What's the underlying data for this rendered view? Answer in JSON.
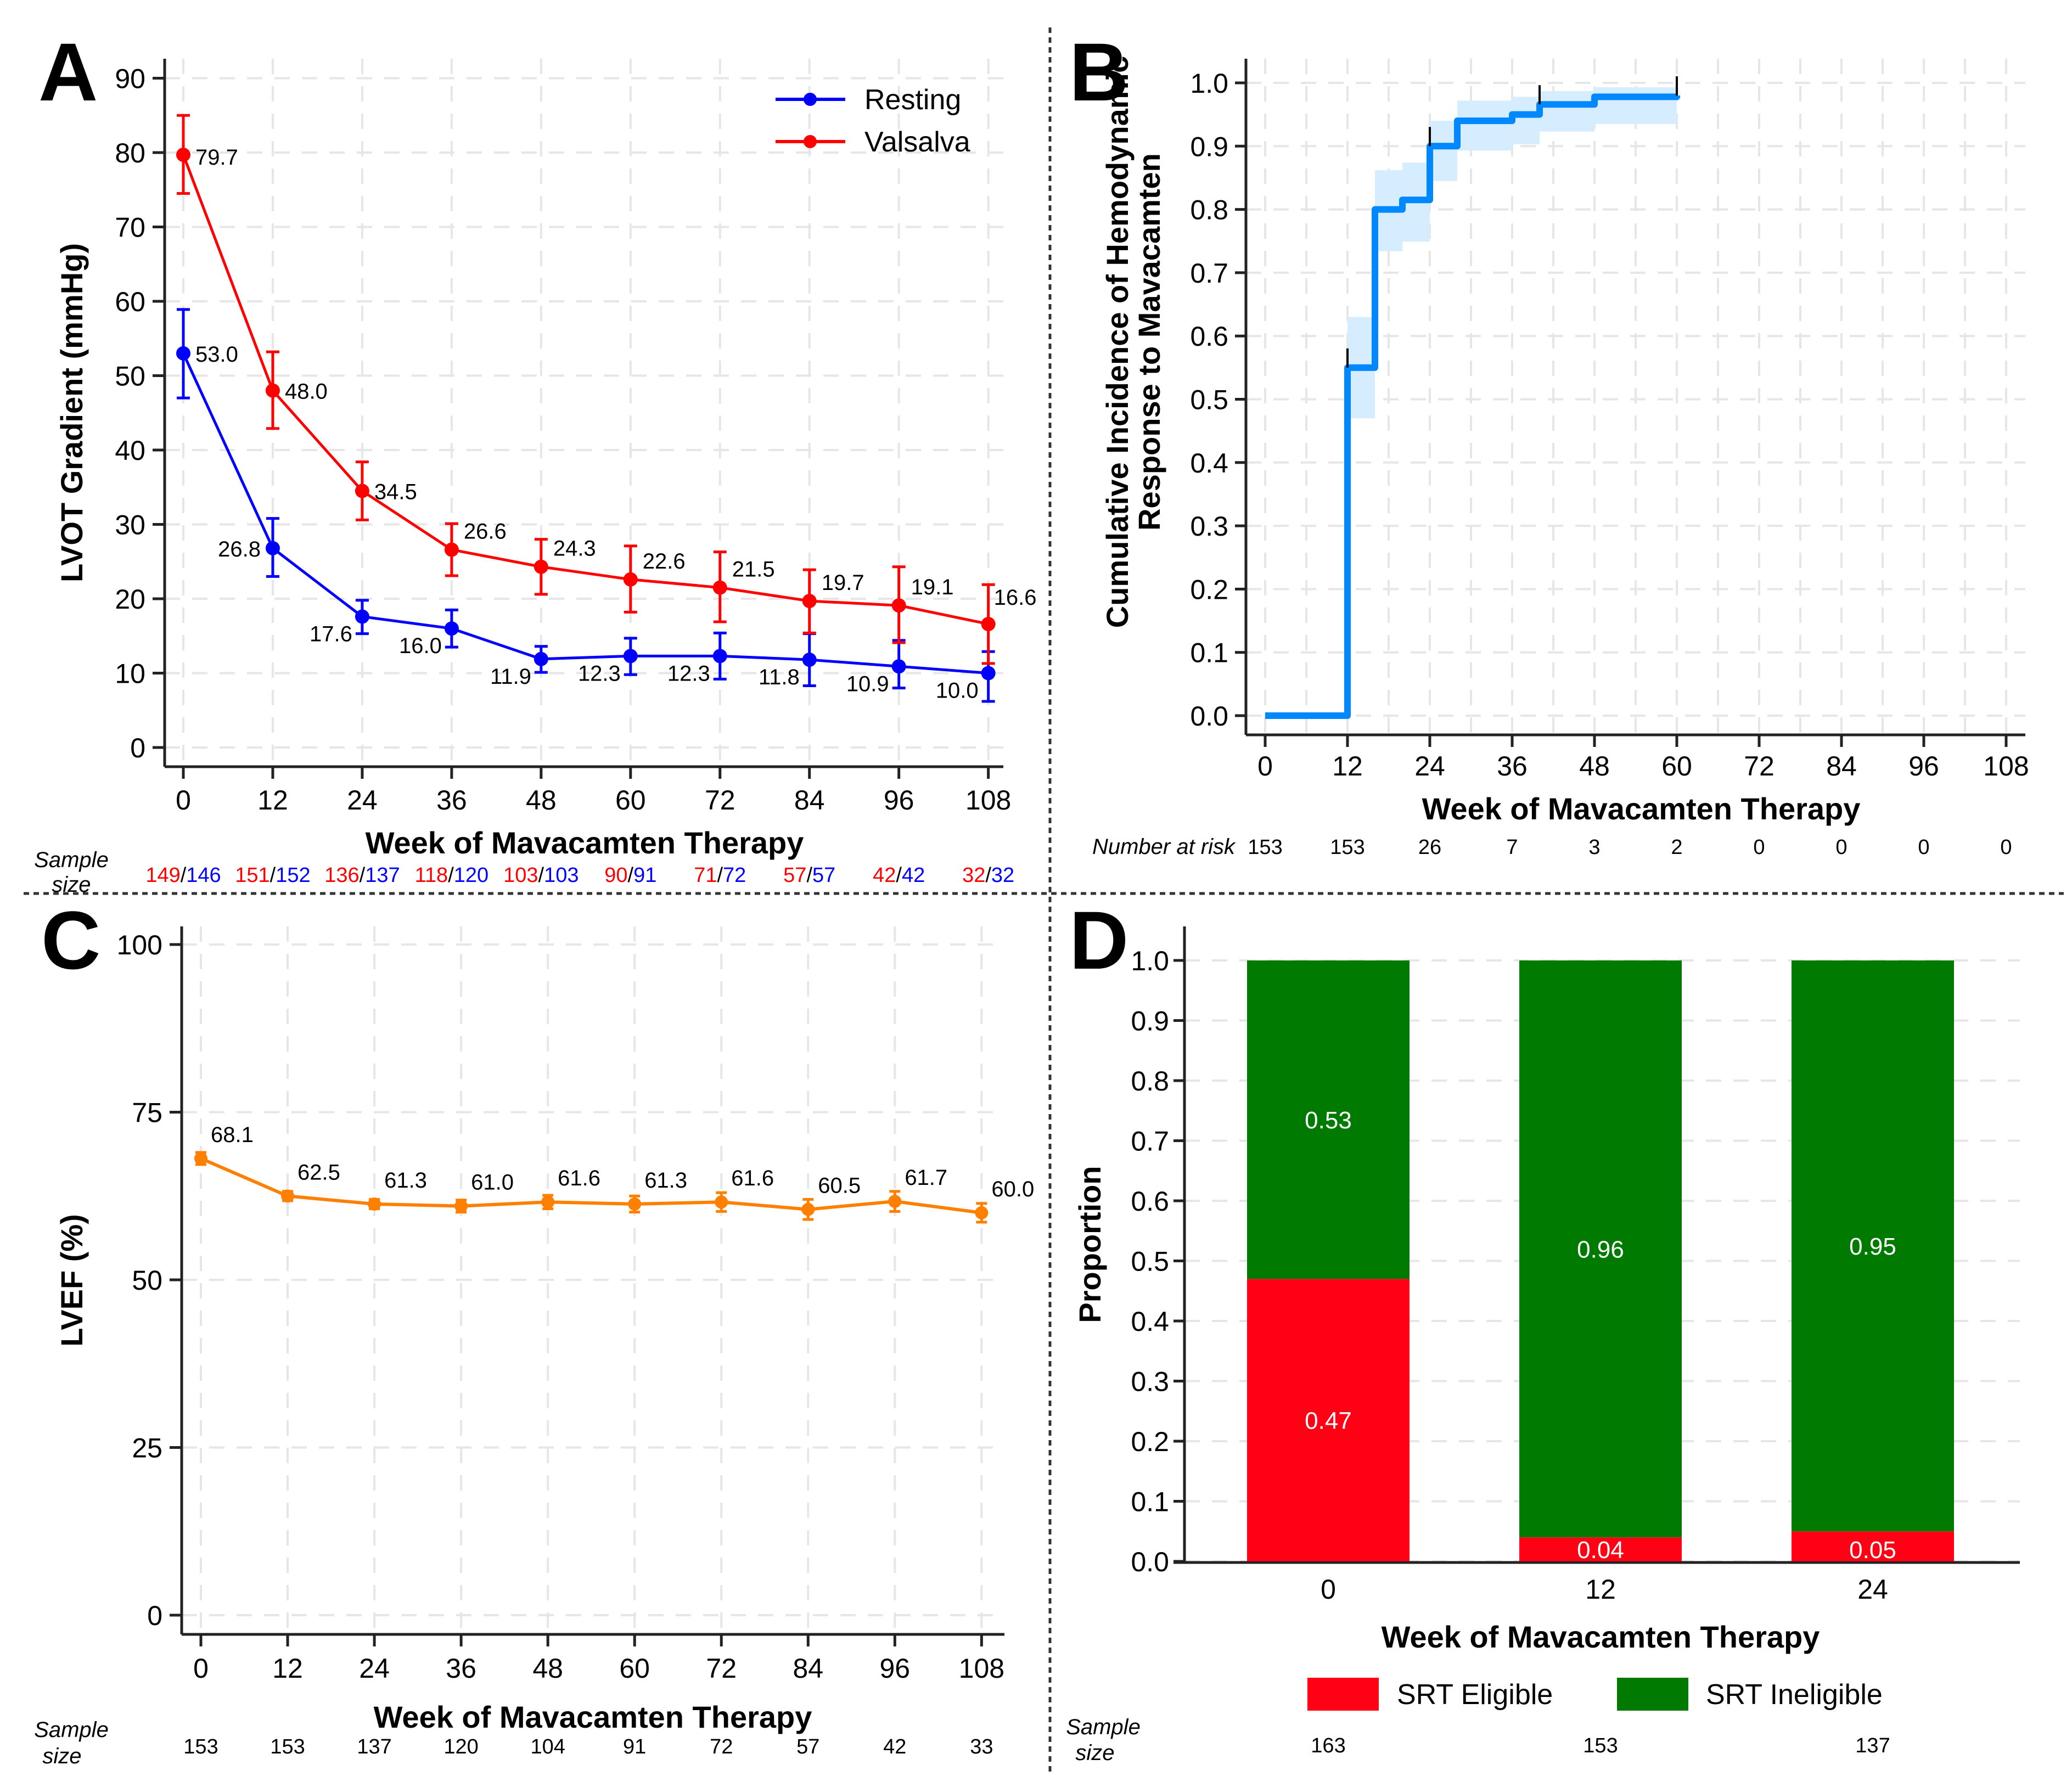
{
  "figure": {
    "panels": [
      "A",
      "B",
      "C",
      "D"
    ],
    "sample_size_label": [
      "Sample",
      "size"
    ],
    "number_at_risk_label": "Number at risk"
  },
  "colors": {
    "resting": "#0000FF",
    "valsalva": "#FF0000",
    "lvef": "#FF8000",
    "cumulative": "#0088FF",
    "ci_band": "#D6ECFF",
    "srt_eligible": "#FF0015",
    "srt_ineligible": "#007A00"
  },
  "chart_data": [
    {
      "panel": "A",
      "type": "line",
      "title": "",
      "xlabel": "Week of Mavacamten Therapy",
      "ylabel": "LVOT Gradient (mmHg)",
      "x": [
        0,
        12,
        24,
        36,
        48,
        60,
        72,
        84,
        96,
        108
      ],
      "xticks": [
        "0",
        "12",
        "24",
        "36",
        "48",
        "60",
        "72",
        "84",
        "96",
        "108"
      ],
      "yticks": [
        "0",
        "10",
        "20",
        "30",
        "40",
        "50",
        "60",
        "70",
        "80",
        "90"
      ],
      "xlim": [
        -2.5,
        111
      ],
      "ylim": [
        -3,
        93
      ],
      "grid": true,
      "legend_position": "top-right",
      "series": [
        {
          "name": "Resting",
          "values": [
            53.0,
            26.8,
            17.6,
            16.0,
            11.9,
            12.3,
            12.3,
            11.8,
            10.9,
            10.0
          ],
          "labels": [
            "53.0",
            "26.8",
            "17.6",
            "16.0",
            "11.9",
            "12.3",
            "12.3",
            "11.8",
            "10.9",
            "10.0"
          ],
          "ci_low": [
            47.0,
            23.0,
            15.3,
            13.5,
            10.1,
            9.8,
            9.2,
            8.3,
            8.0,
            6.2
          ],
          "ci_high": [
            58.9,
            30.8,
            19.8,
            18.5,
            13.6,
            14.7,
            15.4,
            15.3,
            14.4,
            12.9
          ]
        },
        {
          "name": "Valsalva",
          "values": [
            79.7,
            48.0,
            34.5,
            26.6,
            24.3,
            22.6,
            21.5,
            19.7,
            19.1,
            16.6
          ],
          "labels": [
            "79.7",
            "48.0",
            "34.5",
            "26.6",
            "24.3",
            "22.6",
            "21.5",
            "19.7",
            "19.1",
            "16.6"
          ],
          "ci_low": [
            74.5,
            42.9,
            30.6,
            23.1,
            20.6,
            18.2,
            16.9,
            15.4,
            14.1,
            11.3
          ],
          "ci_high": [
            85.0,
            53.2,
            38.4,
            30.1,
            28.0,
            27.1,
            26.3,
            23.9,
            24.3,
            21.9
          ]
        }
      ],
      "sample_size": [
        {
          "valsalva": "149",
          "resting": "146"
        },
        {
          "valsalva": "151",
          "resting": "152"
        },
        {
          "valsalva": "136",
          "resting": "137"
        },
        {
          "valsalva": "118",
          "resting": "120"
        },
        {
          "valsalva": "103",
          "resting": "103"
        },
        {
          "valsalva": "90",
          "resting": "91"
        },
        {
          "valsalva": "71",
          "resting": "72"
        },
        {
          "valsalva": "57",
          "resting": "57"
        },
        {
          "valsalva": "42",
          "resting": "42"
        },
        {
          "valsalva": "32",
          "resting": "32"
        }
      ]
    },
    {
      "panel": "B",
      "type": "line",
      "subtype": "step-cumulative-incidence",
      "title": "",
      "xlabel": "Week of Mavacamten Therapy",
      "ylabel": [
        "Cumulative Incidence of Hemodynamic",
        "Response to Mavacamten"
      ],
      "xticks": [
        "0",
        "12",
        "24",
        "36",
        "48",
        "60",
        "72",
        "84",
        "96",
        "108"
      ],
      "yticks": [
        "0.0",
        "0.1",
        "0.2",
        "0.3",
        "0.4",
        "0.5",
        "0.6",
        "0.7",
        "0.8",
        "0.9",
        "1.0"
      ],
      "xlim": [
        -2.5,
        111
      ],
      "ylim": [
        -0.03,
        1.04
      ],
      "grid": true,
      "steps": [
        {
          "week": 0,
          "value": 0.0
        },
        {
          "week": 12,
          "value": 0.55
        },
        {
          "week": 16,
          "value": 0.8
        },
        {
          "week": 20,
          "value": 0.815
        },
        {
          "week": 24,
          "value": 0.9
        },
        {
          "week": 28,
          "value": 0.94
        },
        {
          "week": 36,
          "value": 0.95
        },
        {
          "week": 40,
          "value": 0.966
        },
        {
          "week": 48,
          "value": 0.978
        },
        {
          "week": 60,
          "value": 0.98
        }
      ],
      "ci_band": [
        {
          "from": 12,
          "to": 16,
          "low": 0.47,
          "high": 0.63
        },
        {
          "from": 16,
          "to": 20,
          "low": 0.734,
          "high": 0.862
        },
        {
          "from": 20,
          "to": 24,
          "low": 0.749,
          "high": 0.874
        },
        {
          "from": 24,
          "to": 28,
          "low": 0.845,
          "high": 0.94
        },
        {
          "from": 28,
          "to": 36,
          "low": 0.893,
          "high": 0.972
        },
        {
          "from": 36,
          "to": 40,
          "low": 0.903,
          "high": 0.978
        },
        {
          "from": 40,
          "to": 48,
          "low": 0.923,
          "high": 0.987
        },
        {
          "from": 48,
          "to": 60,
          "low": 0.935,
          "high": 0.993
        }
      ],
      "censor_marks_weeks": [
        12,
        24,
        40,
        60
      ],
      "number_at_risk": [
        "153",
        "153",
        "26",
        "7",
        "3",
        "2",
        "0",
        "0",
        "0",
        "0"
      ]
    },
    {
      "panel": "C",
      "type": "line",
      "title": "",
      "xlabel": "Week of Mavacamten Therapy",
      "ylabel": "LVEF (%)",
      "x": [
        0,
        12,
        24,
        36,
        48,
        60,
        72,
        84,
        96,
        108
      ],
      "xticks": [
        "0",
        "12",
        "24",
        "36",
        "48",
        "60",
        "72",
        "84",
        "96",
        "108"
      ],
      "yticks": [
        "0",
        "25",
        "50",
        "75",
        "100"
      ],
      "xlim": [
        -2.7,
        111
      ],
      "ylim": [
        -3,
        103
      ],
      "grid": true,
      "series": [
        {
          "name": "LVEF",
          "values": [
            68.1,
            62.5,
            61.3,
            61.0,
            61.6,
            61.3,
            61.6,
            60.5,
            61.7,
            60.0
          ],
          "labels": [
            "68.1",
            "62.5",
            "61.3",
            "61.0",
            "61.6",
            "61.3",
            "61.6",
            "60.5",
            "61.7",
            "60.0"
          ],
          "ci_low": [
            67.2,
            61.8,
            60.6,
            60.1,
            60.6,
            60.1,
            60.2,
            59.0,
            60.2,
            58.6
          ],
          "ci_high": [
            69.0,
            63.2,
            62.0,
            61.9,
            62.6,
            62.5,
            63.0,
            62.0,
            63.2,
            61.4
          ]
        }
      ],
      "sample_size": [
        "153",
        "153",
        "137",
        "120",
        "104",
        "91",
        "72",
        "57",
        "42",
        "33"
      ]
    },
    {
      "panel": "D",
      "type": "bar",
      "subtype": "stacked",
      "title": "",
      "xlabel": "Week of Mavacamten Therapy",
      "ylabel": "Proportion",
      "categories": [
        "0",
        "12",
        "24"
      ],
      "yticks": [
        "0.0",
        "0.1",
        "0.2",
        "0.3",
        "0.4",
        "0.5",
        "0.6",
        "0.7",
        "0.8",
        "0.9",
        "1.0"
      ],
      "ylim": [
        0,
        1.05
      ],
      "grid": true,
      "legend_position": "bottom",
      "series": [
        {
          "name": "SRT Eligible",
          "values": [
            0.47,
            0.04,
            0.05
          ],
          "labels": [
            "0.47",
            "0.04",
            "0.05"
          ]
        },
        {
          "name": "SRT Ineligible",
          "values": [
            0.53,
            0.96,
            0.95
          ],
          "labels": [
            "0.53",
            "0.96",
            "0.95"
          ]
        }
      ],
      "sample_size": [
        "163",
        "153",
        "137"
      ]
    }
  ]
}
